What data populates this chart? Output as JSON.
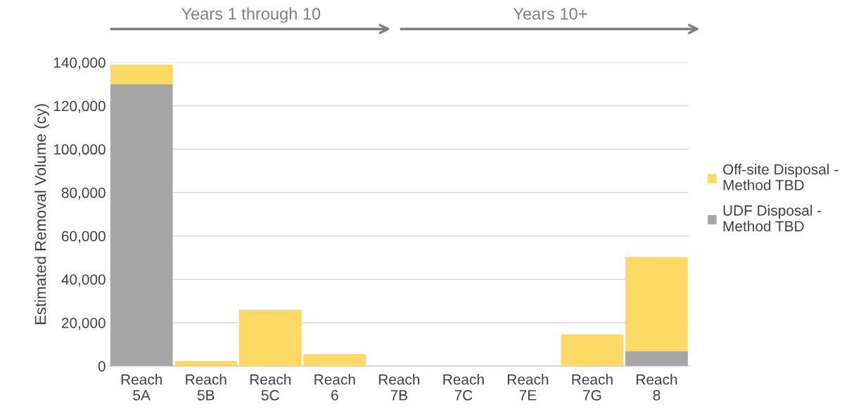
{
  "chart_data": {
    "type": "bar",
    "ylabel": "Estimated Removal Volume (cy)",
    "categories": [
      "Reach\n5A",
      "Reach\n5B",
      "Reach\n5C",
      "Reach\n6",
      "Reach\n7B",
      "Reach\n7C",
      "Reach\n7E",
      "Reach\n7G",
      "Reach\n8"
    ],
    "stacked": true,
    "series": [
      {
        "name": "UDF Disposal -\nMethod TBD",
        "color": "#a6a6a6",
        "values": [
          130000,
          0,
          0,
          0,
          0,
          0,
          0,
          0,
          6800
        ]
      },
      {
        "name": "Off-site Disposal -\nMethod TBD",
        "color": "#ffd966",
        "values": [
          9000,
          2300,
          26000,
          5500,
          0,
          0,
          0,
          14600,
          43500
        ]
      }
    ],
    "ylim": [
      0,
      140000
    ],
    "yticks": [
      {
        "value": 0,
        "label": "0"
      },
      {
        "value": 20000,
        "label": "20,000"
      },
      {
        "value": 40000,
        "label": "40,000"
      },
      {
        "value": 60000,
        "label": "60,000"
      },
      {
        "value": 80000,
        "label": "80,000"
      },
      {
        "value": 100000,
        "label": "100,000"
      },
      {
        "value": 120000,
        "label": "120,000"
      },
      {
        "value": 140000,
        "label": "140,000"
      }
    ],
    "grid": "y",
    "legend": "right",
    "annotations": [
      "Years 1 through 10",
      "Years 10+"
    ]
  }
}
